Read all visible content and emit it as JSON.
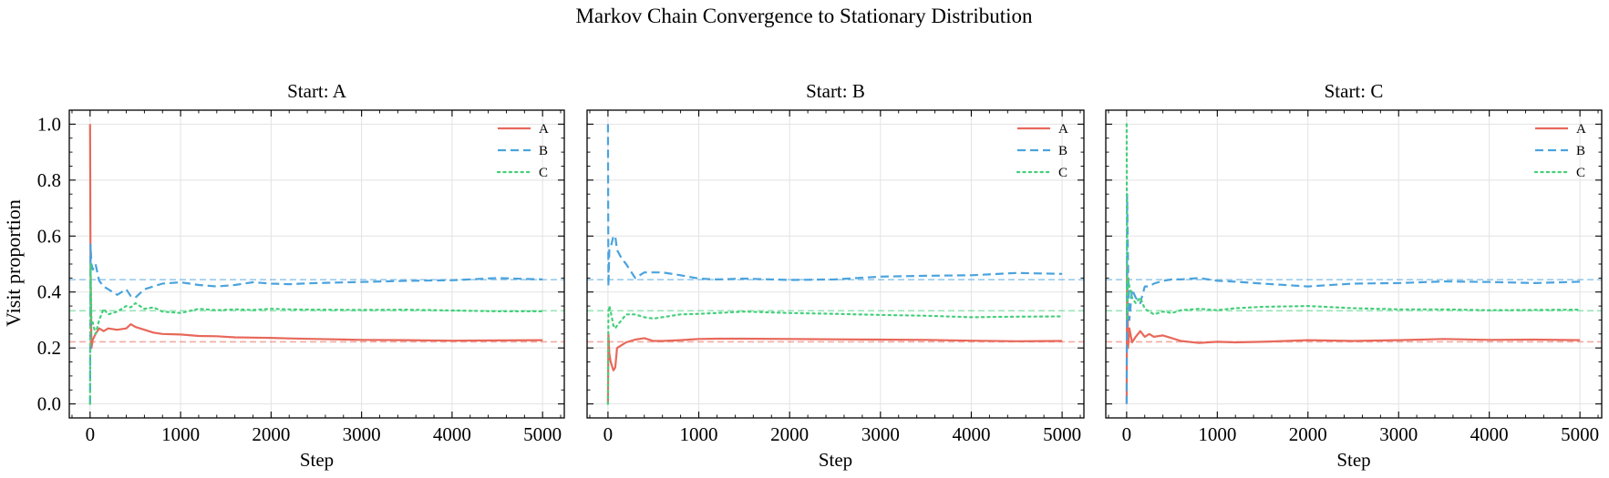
{
  "chart_data": {
    "type": "line",
    "title": "Markov Chain Convergence to Stationary Distribution",
    "ylabel": "Visit proportion",
    "xlabel": "Step",
    "xlim": [
      -230,
      5240
    ],
    "ylim": [
      -0.05,
      1.05
    ],
    "xticks": [
      0,
      1000,
      2000,
      3000,
      4000,
      5000
    ],
    "xtick_labels": [
      "0",
      "1000",
      "2000",
      "3000",
      "4000",
      "5000"
    ],
    "yticks": [
      0.0,
      0.2,
      0.4,
      0.6,
      0.8,
      1.0
    ],
    "ytick_labels": [
      "0.0",
      "0.2",
      "0.4",
      "0.6",
      "0.8",
      "1.0"
    ],
    "grid": true,
    "legend_position": "top-right",
    "legend": [
      "A",
      "B",
      "C"
    ],
    "colors": {
      "A": "#e8685a",
      "B": "#4ba3dd",
      "C": "#45cf7b"
    },
    "line_styles": {
      "A": "solid",
      "B": "dashed",
      "C": "dotted"
    },
    "stationary": {
      "A": 0.222,
      "B": 0.444,
      "C": 0.333
    },
    "panels": [
      {
        "title": "Start: A",
        "series": [
          {
            "name": "A",
            "x": [
              0,
              5,
              15,
              30,
              60,
              100,
              150,
              200,
              300,
              400,
              450,
              500,
              600,
              700,
              800,
              1000,
              1200,
              1400,
              1600,
              1800,
              2000,
              2200,
              2500,
              3000,
              3500,
              4000,
              4500,
              5000
            ],
            "y": [
              1.0,
              0.5,
              0.2,
              0.23,
              0.25,
              0.27,
              0.26,
              0.27,
              0.265,
              0.27,
              0.285,
              0.275,
              0.265,
              0.255,
              0.25,
              0.248,
              0.243,
              0.242,
              0.238,
              0.237,
              0.236,
              0.234,
              0.232,
              0.229,
              0.228,
              0.226,
              0.227,
              0.228
            ]
          },
          {
            "name": "B",
            "x": [
              0,
              5,
              15,
              30,
              60,
              100,
              150,
              200,
              300,
              400,
              450,
              500,
              600,
              700,
              800,
              1000,
              1200,
              1400,
              1600,
              1800,
              2000,
              2200,
              2500,
              3000,
              3500,
              4000,
              4500,
              5000
            ],
            "y": [
              0.0,
              0.57,
              0.5,
              0.48,
              0.5,
              0.44,
              0.42,
              0.41,
              0.39,
              0.41,
              0.385,
              0.38,
              0.41,
              0.42,
              0.43,
              0.435,
              0.425,
              0.42,
              0.425,
              0.435,
              0.43,
              0.428,
              0.432,
              0.436,
              0.44,
              0.442,
              0.45,
              0.445
            ]
          },
          {
            "name": "C",
            "x": [
              0,
              5,
              15,
              30,
              60,
              100,
              150,
              200,
              300,
              400,
              450,
              500,
              600,
              700,
              800,
              1000,
              1200,
              1400,
              1600,
              1800,
              2000,
              2200,
              2500,
              3000,
              3500,
              4000,
              4500,
              5000
            ],
            "y": [
              0.0,
              0.5,
              0.3,
              0.29,
              0.25,
              0.3,
              0.34,
              0.32,
              0.33,
              0.35,
              0.345,
              0.36,
              0.34,
              0.345,
              0.33,
              0.325,
              0.34,
              0.335,
              0.338,
              0.336,
              0.34,
              0.338,
              0.337,
              0.336,
              0.337,
              0.334,
              0.331,
              0.331
            ]
          }
        ]
      },
      {
        "title": "Start: B",
        "series": [
          {
            "name": "A",
            "x": [
              0,
              5,
              15,
              30,
              60,
              80,
              100,
              150,
              200,
              300,
              400,
              500,
              600,
              800,
              1000,
              1200,
              1500,
              2000,
              2500,
              3000,
              3500,
              4000,
              4500,
              5000
            ],
            "y": [
              0.0,
              0.25,
              0.18,
              0.15,
              0.12,
              0.13,
              0.2,
              0.21,
              0.22,
              0.23,
              0.235,
              0.225,
              0.225,
              0.228,
              0.232,
              0.233,
              0.233,
              0.232,
              0.231,
              0.23,
              0.229,
              0.226,
              0.224,
              0.225
            ]
          },
          {
            "name": "B",
            "x": [
              0,
              5,
              15,
              30,
              60,
              80,
              100,
              150,
              200,
              300,
              400,
              500,
              600,
              800,
              1000,
              1200,
              1500,
              2000,
              2500,
              3000,
              3500,
              4000,
              4500,
              5000
            ],
            "y": [
              1.0,
              0.42,
              0.55,
              0.56,
              0.6,
              0.6,
              0.55,
              0.52,
              0.5,
              0.45,
              0.47,
              0.47,
              0.47,
              0.46,
              0.448,
              0.445,
              0.448,
              0.443,
              0.445,
              0.455,
              0.458,
              0.46,
              0.468,
              0.465
            ]
          },
          {
            "name": "C",
            "x": [
              0,
              5,
              15,
              30,
              60,
              80,
              100,
              150,
              200,
              300,
              400,
              500,
              600,
              800,
              1000,
              1200,
              1500,
              2000,
              2500,
              3000,
              3500,
              4000,
              4500,
              5000
            ],
            "y": [
              0.0,
              0.33,
              0.35,
              0.33,
              0.28,
              0.27,
              0.28,
              0.3,
              0.32,
              0.32,
              0.31,
              0.305,
              0.31,
              0.32,
              0.322,
              0.325,
              0.33,
              0.325,
              0.322,
              0.318,
              0.315,
              0.31,
              0.312,
              0.313
            ]
          }
        ]
      },
      {
        "title": "Start: C",
        "series": [
          {
            "name": "A",
            "x": [
              0,
              5,
              15,
              30,
              60,
              100,
              150,
              200,
              250,
              300,
              400,
              500,
              600,
              800,
              1000,
              1200,
              1500,
              2000,
              2500,
              3000,
              3500,
              4000,
              4500,
              5000
            ],
            "y": [
              0.0,
              0.5,
              0.2,
              0.27,
              0.22,
              0.24,
              0.26,
              0.24,
              0.25,
              0.24,
              0.245,
              0.235,
              0.225,
              0.218,
              0.222,
              0.22,
              0.222,
              0.228,
              0.225,
              0.228,
              0.232,
              0.229,
              0.23,
              0.228
            ]
          },
          {
            "name": "B",
            "x": [
              0,
              5,
              15,
              30,
              60,
              100,
              150,
              200,
              250,
              300,
              400,
              500,
              600,
              800,
              1000,
              1200,
              1500,
              2000,
              2500,
              3000,
              3500,
              4000,
              4500,
              5000
            ],
            "y": [
              0.0,
              0.75,
              0.5,
              0.3,
              0.41,
              0.38,
              0.36,
              0.42,
              0.42,
              0.43,
              0.44,
              0.445,
              0.445,
              0.45,
              0.44,
              0.437,
              0.43,
              0.42,
              0.43,
              0.432,
              0.438,
              0.436,
              0.432,
              0.437
            ]
          },
          {
            "name": "C",
            "x": [
              0,
              5,
              15,
              30,
              60,
              100,
              150,
              200,
              250,
              300,
              400,
              500,
              600,
              800,
              1000,
              1200,
              1500,
              2000,
              2500,
              3000,
              3500,
              4000,
              4500,
              5000
            ],
            "y": [
              1.0,
              0.3,
              0.45,
              0.42,
              0.38,
              0.36,
              0.38,
              0.34,
              0.33,
              0.32,
              0.33,
              0.325,
              0.335,
              0.34,
              0.335,
              0.342,
              0.347,
              0.35,
              0.342,
              0.338,
              0.338,
              0.335,
              0.336,
              0.337
            ]
          }
        ]
      }
    ]
  }
}
